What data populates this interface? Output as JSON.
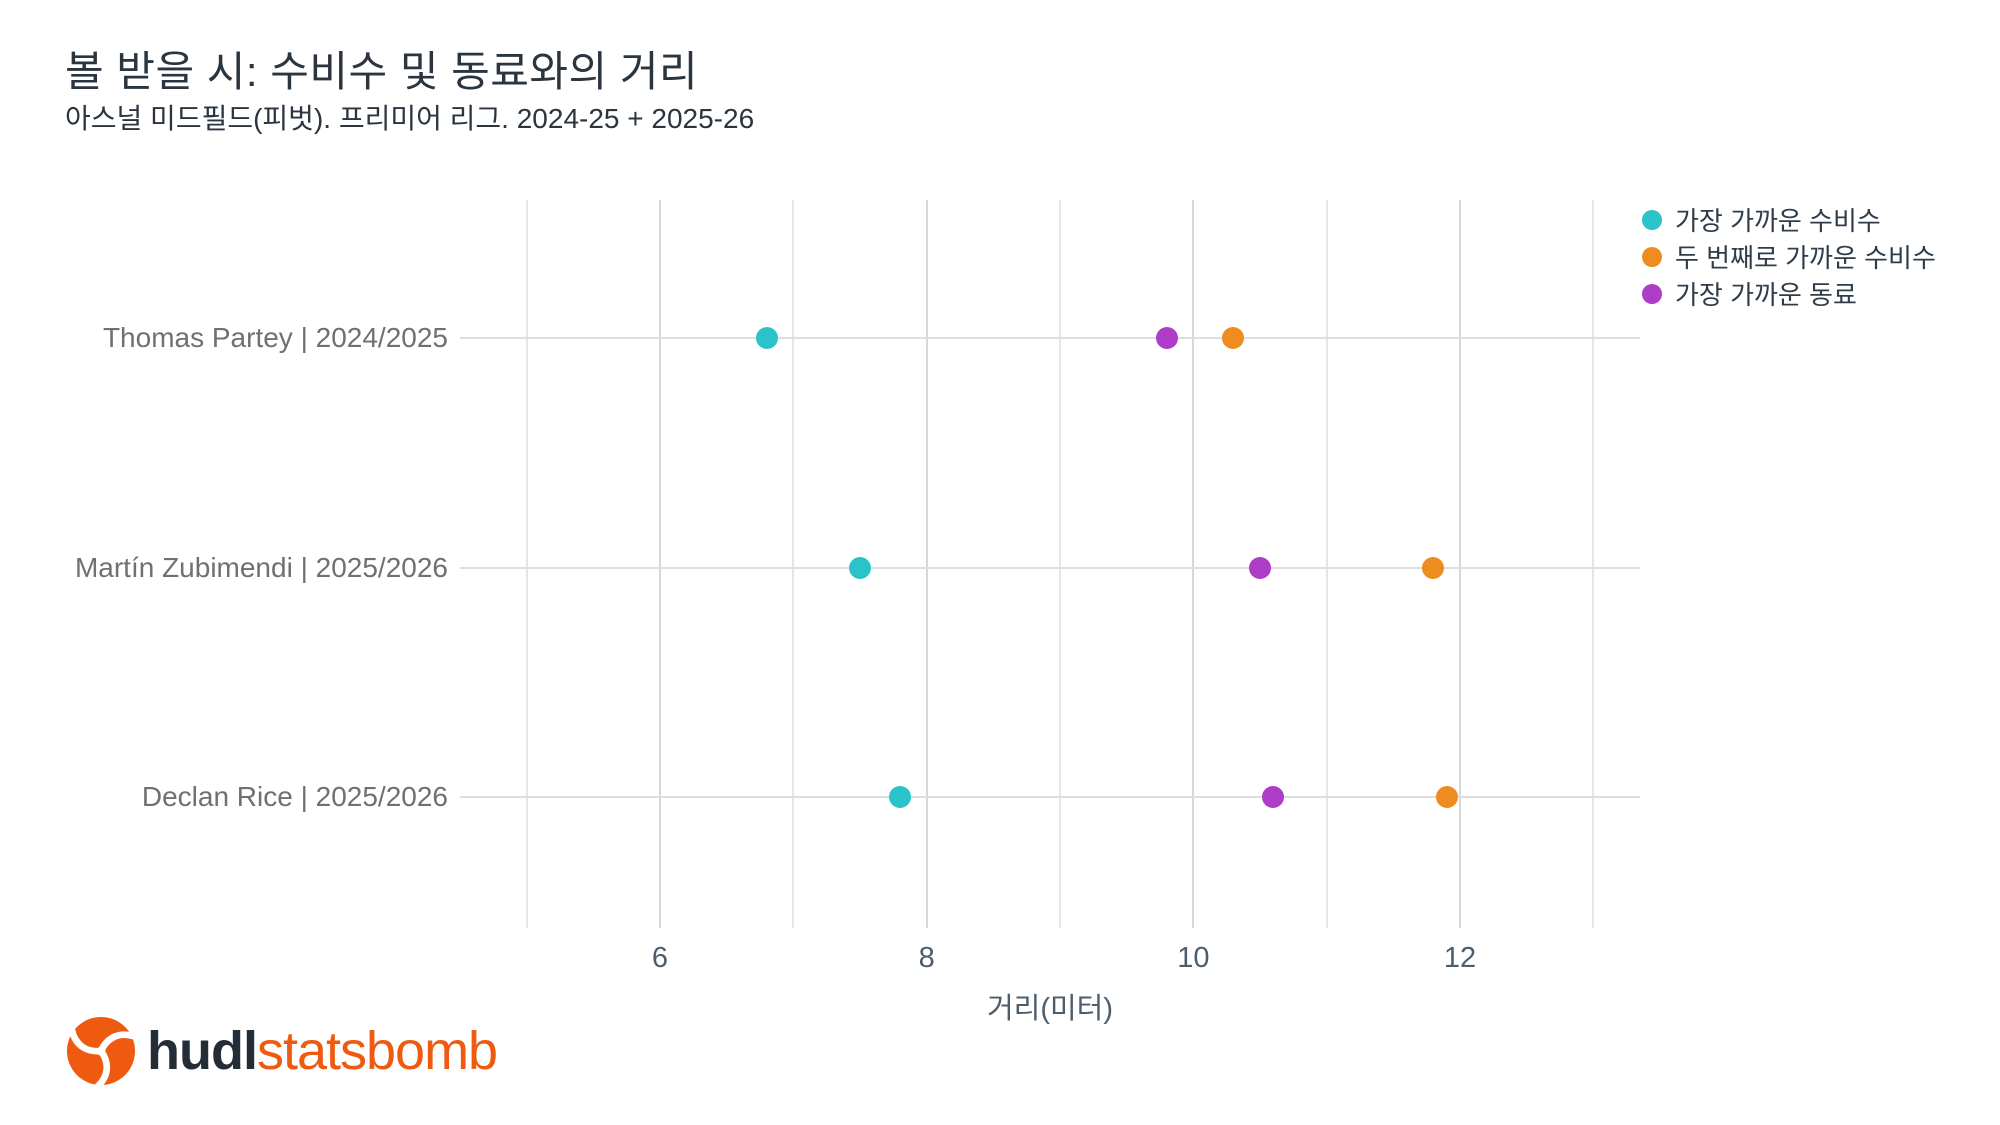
{
  "chart_data": {
    "type": "scatter",
    "title": "볼 받을 시: 수비수 및 동료와의 거리",
    "subtitle": "아스널 미드필드(피벗). 프리미어 리그. 2024-25 + 2025-26",
    "xlabel": "거리(미터)",
    "xlim": [
      4.5,
      13.35
    ],
    "gridlines_x": [
      5,
      6,
      7,
      8,
      9,
      10,
      11,
      12,
      13
    ],
    "x_ticks": [
      6,
      8,
      10,
      12
    ],
    "grid": "vertical gridlines every 1m + horizontal line per row",
    "legend_position": "top-right",
    "categories": [
      "Thomas Partey | 2024/2025",
      "Martín Zubimendi | 2025/2026",
      "Declan Rice | 2025/2026"
    ],
    "series": [
      {
        "name": "가장 가까운 수비수",
        "color": "#29c3c9",
        "values": [
          6.8,
          7.5,
          7.8
        ]
      },
      {
        "name": "두 번째로 가까운 수비수",
        "color": "#ee8c1f",
        "values": [
          10.3,
          11.8,
          11.9
        ]
      },
      {
        "name": "가장 가까운 동료",
        "color": "#ad3dc7",
        "values": [
          9.8,
          10.5,
          10.6
        ]
      }
    ]
  },
  "footer": {
    "brand_bold": "hudl",
    "brand_regular": "statsbomb",
    "brand_color": "#ee5a10"
  }
}
